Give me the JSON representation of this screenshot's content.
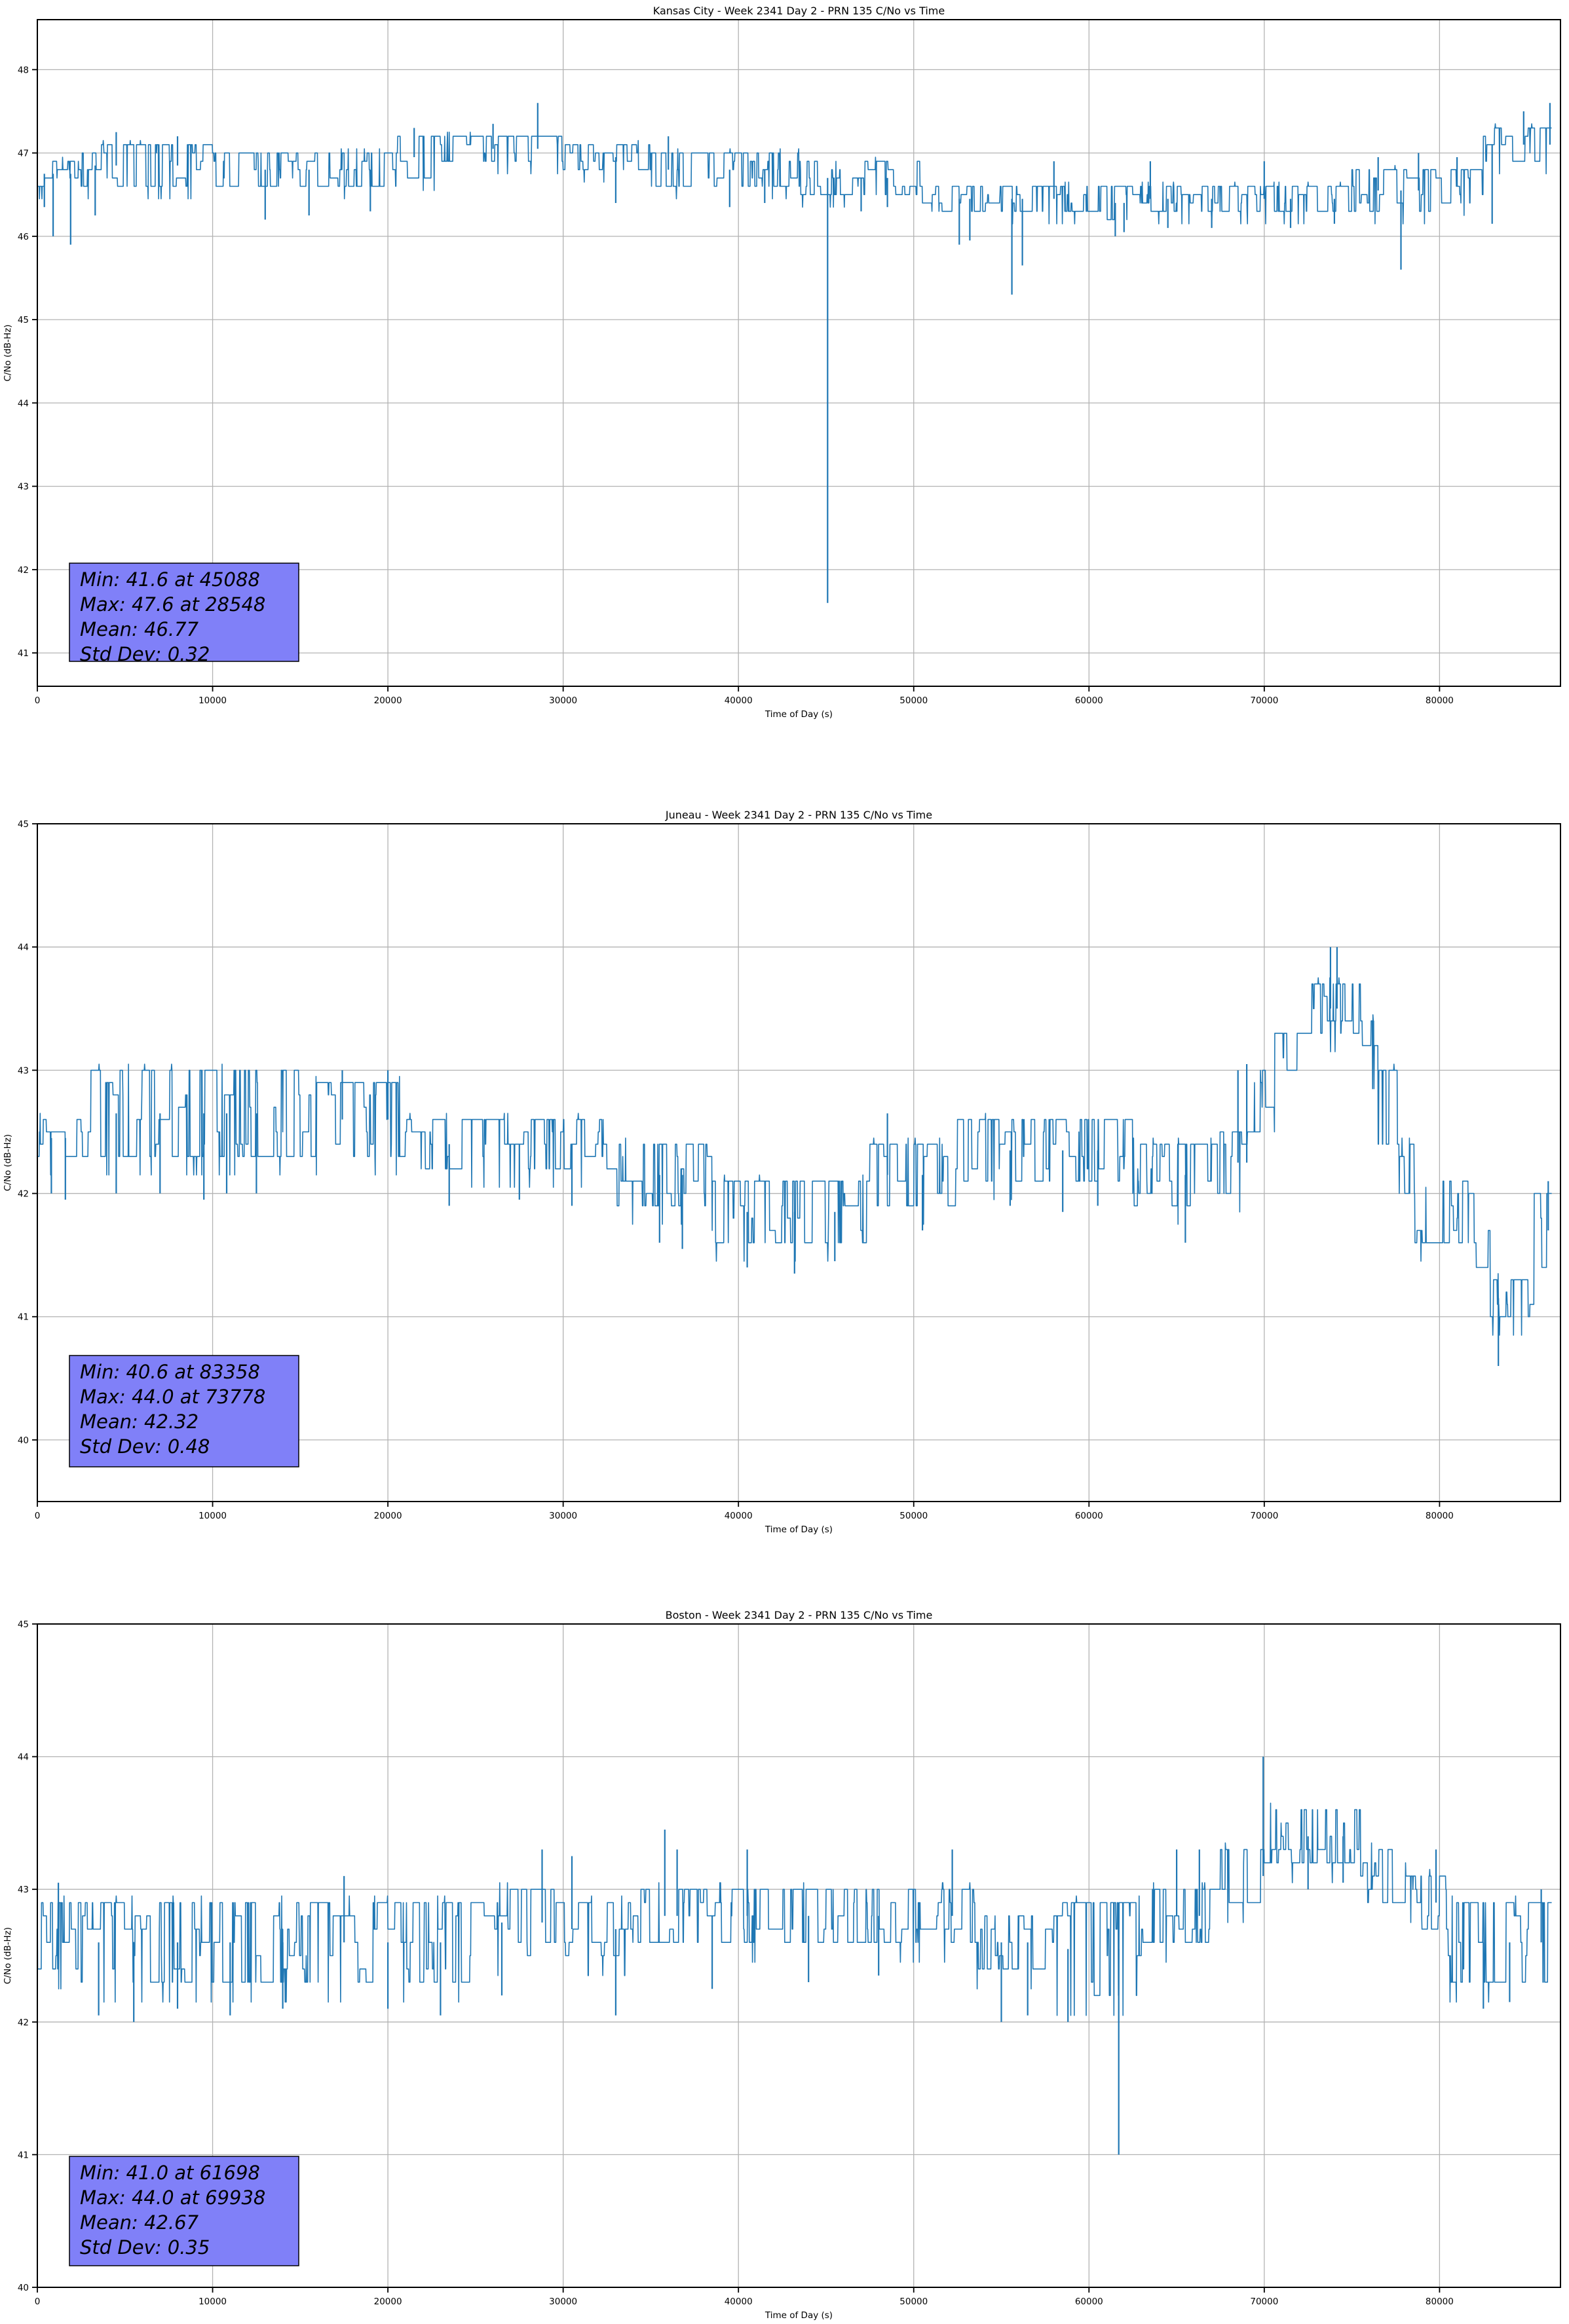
{
  "page": {
    "background": "#ffffff"
  },
  "chart_data": [
    {
      "type": "line",
      "title": "Kansas City - Week 2341 Day 2 - PRN 135 C/No vs Time",
      "xlabel": "Time of Day (s)",
      "ylabel": "C/No (dB-Hz)",
      "line_color": "#1f77b4",
      "grid": true,
      "xlim": [
        0,
        86900
      ],
      "ylim": [
        40.6,
        48.6
      ],
      "xticks": [
        0,
        10000,
        20000,
        30000,
        40000,
        50000,
        60000,
        70000,
        80000
      ],
      "yticks": [
        41,
        42,
        43,
        44,
        45,
        46,
        47,
        48
      ],
      "stats": {
        "min": 41.6,
        "min_t": 45088,
        "max": 47.6,
        "max_t": 28548,
        "mean": 46.77,
        "std_dev": 0.32
      },
      "annotation_lines": [
        "Min: 41.6 at 45088",
        "Max: 47.6 at 28548",
        "Mean: 46.77",
        "Std Dev: 0.32"
      ],
      "annotation_bg": "#8080f8",
      "envelope_segments": [
        [
          0,
          2500,
          46.6,
          46.9
        ],
        [
          2500,
          10000,
          46.6,
          47.1
        ],
        [
          10000,
          20500,
          46.6,
          47.0
        ],
        [
          20500,
          23000,
          46.7,
          47.2
        ],
        [
          23000,
          30000,
          46.9,
          47.2
        ],
        [
          30000,
          35000,
          46.8,
          47.1
        ],
        [
          35000,
          43500,
          46.6,
          47.0
        ],
        [
          43500,
          50500,
          46.5,
          46.9
        ],
        [
          50500,
          61000,
          46.3,
          46.6
        ],
        [
          61000,
          62500,
          46.2,
          46.6
        ],
        [
          62500,
          75000,
          46.3,
          46.6
        ],
        [
          75000,
          79500,
          46.3,
          46.8
        ],
        [
          79500,
          82500,
          46.4,
          46.8
        ],
        [
          82500,
          86900,
          46.9,
          47.3
        ]
      ],
      "spikes": [
        [
          400,
          46.35
        ],
        [
          900,
          46.0
        ],
        [
          1900,
          45.9
        ],
        [
          3300,
          46.25
        ],
        [
          4500,
          47.25
        ],
        [
          8000,
          47.2
        ],
        [
          13000,
          46.2
        ],
        [
          15500,
          46.25
        ],
        [
          19000,
          46.3
        ],
        [
          21500,
          47.3
        ],
        [
          26000,
          47.35
        ],
        [
          28548,
          47.6
        ],
        [
          33000,
          46.4
        ],
        [
          36000,
          47.2
        ],
        [
          39500,
          46.35
        ],
        [
          41500,
          46.4
        ],
        [
          45088,
          41.6
        ],
        [
          47000,
          46.3
        ],
        [
          48500,
          46.35
        ],
        [
          52600,
          45.9
        ],
        [
          53200,
          45.95
        ],
        [
          55600,
          45.3
        ],
        [
          56200,
          45.65
        ],
        [
          58000,
          46.9
        ],
        [
          61500,
          46.0
        ],
        [
          62000,
          46.05
        ],
        [
          63500,
          46.9
        ],
        [
          64500,
          46.1
        ],
        [
          67000,
          46.1
        ],
        [
          70000,
          46.9
        ],
        [
          71500,
          46.1
        ],
        [
          74000,
          46.15
        ],
        [
          76500,
          46.95
        ],
        [
          77800,
          45.6
        ],
        [
          78800,
          47.0
        ],
        [
          81000,
          46.95
        ],
        [
          83000,
          46.15
        ],
        [
          84800,
          47.5
        ],
        [
          86300,
          47.6
        ]
      ]
    },
    {
      "type": "line",
      "title": "Juneau - Week 2341 Day 2 - PRN 135 C/No vs Time",
      "xlabel": "Time of Day (s)",
      "ylabel": "C/No (dB-Hz)",
      "line_color": "#1f77b4",
      "grid": true,
      "xlim": [
        0,
        86900
      ],
      "ylim": [
        39.5,
        45.0
      ],
      "xticks": [
        0,
        10000,
        20000,
        30000,
        40000,
        50000,
        60000,
        70000,
        80000
      ],
      "yticks": [
        40,
        41,
        42,
        43,
        44,
        45
      ],
      "stats": {
        "min": 40.6,
        "min_t": 83358,
        "max": 44.0,
        "max_t": 73778,
        "mean": 42.32,
        "std_dev": 0.48
      },
      "annotation_lines": [
        "Min: 40.6 at 83358",
        "Max: 44.0 at 73778",
        "Mean: 42.32",
        "Std Dev: 0.48"
      ],
      "annotation_bg": "#8080f8",
      "envelope_segments": [
        [
          0,
          2900,
          42.3,
          42.6
        ],
        [
          2900,
          15000,
          42.3,
          43.0
        ],
        [
          15000,
          21000,
          42.3,
          42.9
        ],
        [
          21000,
          32500,
          42.2,
          42.6
        ],
        [
          32500,
          38500,
          41.9,
          42.4
        ],
        [
          38500,
          47500,
          41.6,
          42.1
        ],
        [
          47500,
          52500,
          41.9,
          42.4
        ],
        [
          52500,
          62500,
          42.1,
          42.6
        ],
        [
          62500,
          67000,
          41.9,
          42.4
        ],
        [
          67000,
          69300,
          42.0,
          42.5
        ],
        [
          69300,
          70600,
          42.5,
          43.0
        ],
        [
          70600,
          72400,
          43.0,
          43.3
        ],
        [
          72400,
          75500,
          43.3,
          43.7
        ],
        [
          75500,
          76500,
          43.0,
          43.4
        ],
        [
          76500,
          77700,
          42.4,
          43.0
        ],
        [
          77700,
          78600,
          42.0,
          42.4
        ],
        [
          78600,
          80200,
          41.6,
          42.0
        ],
        [
          80200,
          82100,
          41.6,
          42.1
        ],
        [
          82100,
          82900,
          41.3,
          41.7
        ],
        [
          82900,
          85400,
          41.0,
          41.3
        ],
        [
          85400,
          86900,
          41.4,
          42.0
        ]
      ],
      "spikes": [
        [
          800,
          42.0
        ],
        [
          1600,
          41.95
        ],
        [
          4500,
          42.0
        ],
        [
          7000,
          42.0
        ],
        [
          9500,
          41.95
        ],
        [
          10800,
          42.0
        ],
        [
          12500,
          42.0
        ],
        [
          17400,
          43.0
        ],
        [
          20000,
          43.0
        ],
        [
          23500,
          41.9
        ],
        [
          27500,
          41.95
        ],
        [
          30500,
          41.9
        ],
        [
          35500,
          41.6
        ],
        [
          36800,
          41.55
        ],
        [
          40500,
          41.4
        ],
        [
          43200,
          41.35
        ],
        [
          45500,
          41.45
        ],
        [
          48500,
          42.65
        ],
        [
          50500,
          41.7
        ],
        [
          55500,
          41.9
        ],
        [
          58500,
          41.85
        ],
        [
          60500,
          41.9
        ],
        [
          65500,
          41.6
        ],
        [
          68500,
          43.0
        ],
        [
          69000,
          43.05
        ],
        [
          73778,
          44.0
        ],
        [
          74150,
          44.0
        ],
        [
          83358,
          40.6
        ],
        [
          86200,
          42.1
        ]
      ]
    },
    {
      "type": "line",
      "title": "Boston - Week 2341 Day 2 - PRN 135 C/No vs Time",
      "xlabel": "Time of Day (s)",
      "ylabel": "C/No (dB-Hz)",
      "line_color": "#1f77b4",
      "grid": true,
      "xlim": [
        0,
        86900
      ],
      "ylim": [
        40.0,
        45.0
      ],
      "xticks": [
        0,
        10000,
        20000,
        30000,
        40000,
        50000,
        60000,
        70000,
        80000
      ],
      "yticks": [
        40,
        41,
        42,
        43,
        44,
        45
      ],
      "stats": {
        "min": 41.0,
        "min_t": 61698,
        "max": 44.0,
        "max_t": 69938,
        "mean": 42.67,
        "std_dev": 0.35
      },
      "annotation_lines": [
        "Min: 41.0 at 61698",
        "Max: 44.0 at 69938",
        "Mean: 42.67",
        "Std Dev: 0.35"
      ],
      "annotation_bg": "#8080f8",
      "envelope_segments": [
        [
          0,
          2500,
          42.4,
          42.9
        ],
        [
          2500,
          25500,
          42.3,
          42.9
        ],
        [
          25500,
          29500,
          42.5,
          43.0
        ],
        [
          29500,
          34000,
          42.5,
          42.9
        ],
        [
          34000,
          50500,
          42.6,
          43.0
        ],
        [
          50500,
          53500,
          42.6,
          43.0
        ],
        [
          53500,
          58000,
          42.4,
          42.8
        ],
        [
          58000,
          63000,
          42.2,
          42.9
        ],
        [
          63000,
          67500,
          42.6,
          43.0
        ],
        [
          67500,
          70000,
          42.9,
          43.3
        ],
        [
          70000,
          75500,
          43.2,
          43.6
        ],
        [
          75500,
          78500,
          42.9,
          43.3
        ],
        [
          78500,
          80500,
          42.7,
          43.1
        ],
        [
          80500,
          86900,
          42.3,
          42.9
        ]
      ],
      "spikes": [
        [
          1200,
          43.05
        ],
        [
          3500,
          42.05
        ],
        [
          5500,
          42.0
        ],
        [
          8000,
          42.1
        ],
        [
          11000,
          42.05
        ],
        [
          14000,
          42.1
        ],
        [
          17500,
          43.1
        ],
        [
          20000,
          42.1
        ],
        [
          23000,
          42.05
        ],
        [
          26500,
          42.2
        ],
        [
          28800,
          43.3
        ],
        [
          30500,
          43.25
        ],
        [
          33000,
          42.05
        ],
        [
          35800,
          43.45
        ],
        [
          36500,
          43.3
        ],
        [
          38500,
          42.25
        ],
        [
          40500,
          43.3
        ],
        [
          44000,
          42.3
        ],
        [
          48000,
          42.35
        ],
        [
          52200,
          43.3
        ],
        [
          55000,
          42.0
        ],
        [
          56500,
          42.05
        ],
        [
          58800,
          42.0
        ],
        [
          61698,
          41.0
        ],
        [
          65000,
          43.3
        ],
        [
          66300,
          43.3
        ],
        [
          69938,
          44.0
        ],
        [
          72500,
          43.0
        ],
        [
          74500,
          43.05
        ],
        [
          79800,
          43.3
        ],
        [
          82500,
          42.1
        ],
        [
          84000,
          42.15
        ],
        [
          85800,
          43.0
        ]
      ]
    }
  ]
}
